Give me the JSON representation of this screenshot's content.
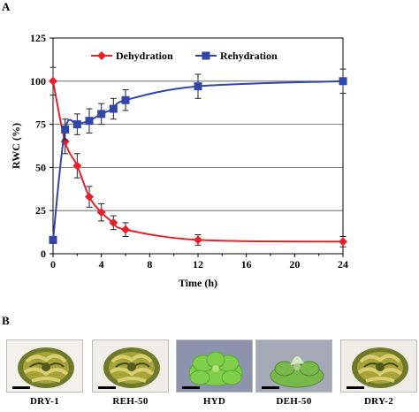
{
  "panels": {
    "a_label": "A",
    "b_label": "B"
  },
  "chart_data": {
    "type": "line",
    "xlabel": "Time (h)",
    "ylabel": "RWC (%)",
    "xlim": [
      0,
      24
    ],
    "ylim": [
      0,
      125
    ],
    "x_ticks": [
      0,
      4,
      8,
      12,
      16,
      20,
      24
    ],
    "y_ticks": [
      0,
      25,
      50,
      75,
      100,
      125
    ],
    "grid": "horizontal",
    "legend_position": "top",
    "series": [
      {
        "name": "Dehydration",
        "color": "#e8202a",
        "marker": "diamond",
        "x": [
          0,
          1,
          2,
          3,
          4,
          5,
          6,
          12,
          24
        ],
        "y": [
          100,
          65,
          51,
          33,
          24,
          18,
          14,
          8,
          7
        ],
        "err": [
          8,
          7,
          7,
          6,
          5,
          4,
          4,
          3,
          3
        ]
      },
      {
        "name": "Rehydration",
        "color": "#3245a8",
        "marker": "square",
        "x": [
          0,
          1,
          2,
          3,
          4,
          5,
          6,
          12,
          24
        ],
        "y": [
          8,
          72,
          75,
          77,
          81,
          84,
          89,
          97,
          100
        ],
        "err": [
          2,
          6,
          6,
          7,
          6,
          6,
          6,
          7,
          7
        ]
      }
    ]
  },
  "photos": [
    {
      "label": "DRY-1",
      "bg": "#f3f1ec",
      "kind": "dry"
    },
    {
      "label": "REH-50",
      "bg": "#efeee8",
      "kind": "dry"
    },
    {
      "label": "HYD",
      "bg": "#8e93ad",
      "kind": "leaf"
    },
    {
      "label": "DEH-50",
      "bg": "#a6a9b7",
      "kind": "leafcurl"
    },
    {
      "label": "DRY-2",
      "bg": "#efede8",
      "kind": "dry"
    }
  ]
}
